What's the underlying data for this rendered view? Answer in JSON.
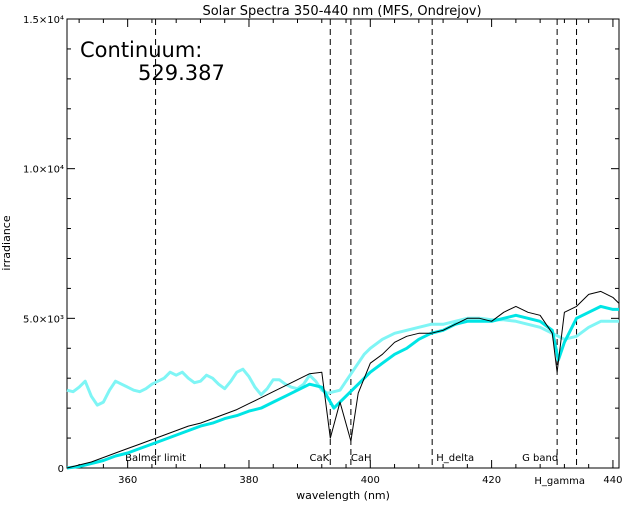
{
  "chart_data": {
    "type": "line",
    "title": "Solar Spectra 350-440 nm (MFS, Ondrejov)",
    "xlabel": "wavelength (nm)",
    "ylabel": "irradiance",
    "xlim": [
      350,
      441
    ],
    "ylim": [
      0,
      15000
    ],
    "x_ticks": [
      {
        "value": 360,
        "label": "360"
      },
      {
        "value": 380,
        "label": "380"
      },
      {
        "value": 400,
        "label": "400"
      },
      {
        "value": 420,
        "label": "420"
      },
      {
        "value": 440,
        "label": "440"
      }
    ],
    "y_ticks": [
      {
        "value": 0,
        "label": "0"
      },
      {
        "value": 5000,
        "label": "5.0×10³"
      },
      {
        "value": 10000,
        "label": "1.0×10⁴"
      },
      {
        "value": 15000,
        "label": "1.5×10⁴"
      }
    ],
    "continuum_label": "Continuum:",
    "continuum_value": "529.387",
    "markers": [
      {
        "x": 364.6,
        "label": "Balmer limit",
        "label_at": 364.6
      },
      {
        "x": 393.4,
        "label": "CaK",
        "label_at": 391.6
      },
      {
        "x": 396.8,
        "label": "CaH",
        "label_at": 398.5
      },
      {
        "x": 410.2,
        "label": "H_delta",
        "label_at": 414.0
      },
      {
        "x": 430.8,
        "label": "G band",
        "label_at": 428.0
      },
      {
        "x": 434.0,
        "label": "H_gamma",
        "label_at": 433.2
      }
    ],
    "series": [
      {
        "color": "#000000",
        "x": [
          350,
          352,
          354,
          356,
          358,
          360,
          362,
          364,
          366,
          368,
          370,
          372,
          374,
          376,
          378,
          380,
          382,
          384,
          386,
          388,
          390,
          392,
          393.4,
          395,
          396.8,
          398,
          400,
          402,
          404,
          406,
          408,
          410,
          412,
          414,
          416,
          418,
          420,
          422,
          424,
          426,
          428,
          430,
          430.8,
          432,
          434,
          436,
          438,
          440,
          441
        ],
        "y": [
          0,
          100,
          200,
          350,
          500,
          650,
          800,
          950,
          1100,
          1250,
          1400,
          1500,
          1650,
          1800,
          1950,
          2150,
          2350,
          2550,
          2750,
          2950,
          3150,
          3200,
          1000,
          2200,
          900,
          2500,
          3500,
          3800,
          4200,
          4400,
          4500,
          4500,
          4600,
          4800,
          5000,
          5000,
          4900,
          5200,
          5400,
          5200,
          5100,
          4500,
          3200,
          5200,
          5400,
          5800,
          5900,
          5700,
          5500
        ]
      },
      {
        "color": "#00e5e5",
        "x": [
          350,
          352,
          354,
          356,
          358,
          360,
          362,
          364,
          366,
          368,
          370,
          372,
          374,
          376,
          378,
          380,
          382,
          384,
          386,
          388,
          390,
          392,
          394,
          396,
          398,
          400,
          402,
          404,
          406,
          408,
          410,
          412,
          414,
          416,
          418,
          420,
          422,
          424,
          426,
          428,
          430,
          431,
          432,
          434,
          436,
          438,
          440,
          441
        ],
        "y": [
          0,
          50,
          150,
          250,
          400,
          500,
          650,
          800,
          950,
          1100,
          1250,
          1400,
          1500,
          1650,
          1750,
          1900,
          2000,
          2200,
          2400,
          2600,
          2800,
          2700,
          2000,
          2400,
          2800,
          3200,
          3500,
          3800,
          4000,
          4300,
          4500,
          4600,
          4800,
          4900,
          4900,
          4900,
          5000,
          5100,
          5000,
          4900,
          4600,
          3600,
          4200,
          5000,
          5200,
          5400,
          5300,
          5300
        ]
      },
      {
        "color": "#7ff5f5",
        "x": [
          350,
          351,
          352,
          353,
          354,
          355,
          356,
          357,
          358,
          359,
          360,
          361,
          362,
          363,
          364,
          365,
          366,
          367,
          368,
          369,
          370,
          371,
          372,
          373,
          374,
          375,
          376,
          377,
          378,
          379,
          380,
          381,
          382,
          383,
          384,
          385,
          386,
          387,
          388,
          389,
          390,
          391,
          392,
          393,
          394,
          395,
          396,
          397,
          398,
          399,
          400,
          402,
          404,
          406,
          408,
          410,
          412,
          414,
          416,
          418,
          420,
          422,
          424,
          426,
          428,
          430,
          432,
          434,
          436,
          438,
          440,
          441
        ],
        "y": [
          2600,
          2550,
          2700,
          2900,
          2400,
          2100,
          2200,
          2600,
          2900,
          2800,
          2700,
          2600,
          2550,
          2650,
          2800,
          2900,
          3000,
          3200,
          3100,
          3200,
          3000,
          2850,
          2900,
          3100,
          3000,
          2800,
          2650,
          2900,
          3200,
          3300,
          3050,
          2700,
          2450,
          2650,
          2950,
          2950,
          2800,
          2700,
          2650,
          2800,
          3100,
          2900,
          2600,
          2500,
          2550,
          2600,
          2900,
          3200,
          3500,
          3800,
          4000,
          4300,
          4500,
          4600,
          4700,
          4800,
          4800,
          4900,
          5000,
          5000,
          4950,
          4950,
          4900,
          4800,
          4700,
          4500,
          4300,
          4400,
          4700,
          4900,
          4900,
          4900
        ]
      }
    ]
  }
}
